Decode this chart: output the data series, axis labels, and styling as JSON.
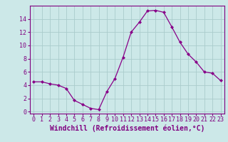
{
  "x": [
    0,
    1,
    2,
    3,
    4,
    5,
    6,
    7,
    8,
    9,
    10,
    11,
    12,
    13,
    14,
    15,
    16,
    17,
    18,
    19,
    20,
    21,
    22,
    23
  ],
  "y": [
    4.5,
    4.5,
    4.2,
    4.0,
    3.5,
    1.7,
    1.1,
    0.5,
    0.3,
    3.0,
    5.0,
    8.2,
    12.0,
    13.5,
    15.2,
    15.3,
    15.0,
    12.8,
    10.5,
    8.7,
    7.5,
    6.0,
    5.8,
    4.7
  ],
  "line_color": "#880088",
  "marker": "D",
  "marker_size": 2,
  "bg_color": "#cce8e8",
  "grid_color": "#aacccc",
  "xlabel": "Windchill (Refroidissement éolien,°C)",
  "xlabel_fontsize": 7,
  "yticks": [
    0,
    2,
    4,
    6,
    8,
    10,
    12,
    14
  ],
  "xticks": [
    0,
    1,
    2,
    3,
    4,
    5,
    6,
    7,
    8,
    9,
    10,
    11,
    12,
    13,
    14,
    15,
    16,
    17,
    18,
    19,
    20,
    21,
    22,
    23
  ],
  "ylim": [
    -0.3,
    16.0
  ],
  "xlim": [
    -0.5,
    23.5
  ],
  "tick_fontsize": 6,
  "axis_color": "#800080"
}
